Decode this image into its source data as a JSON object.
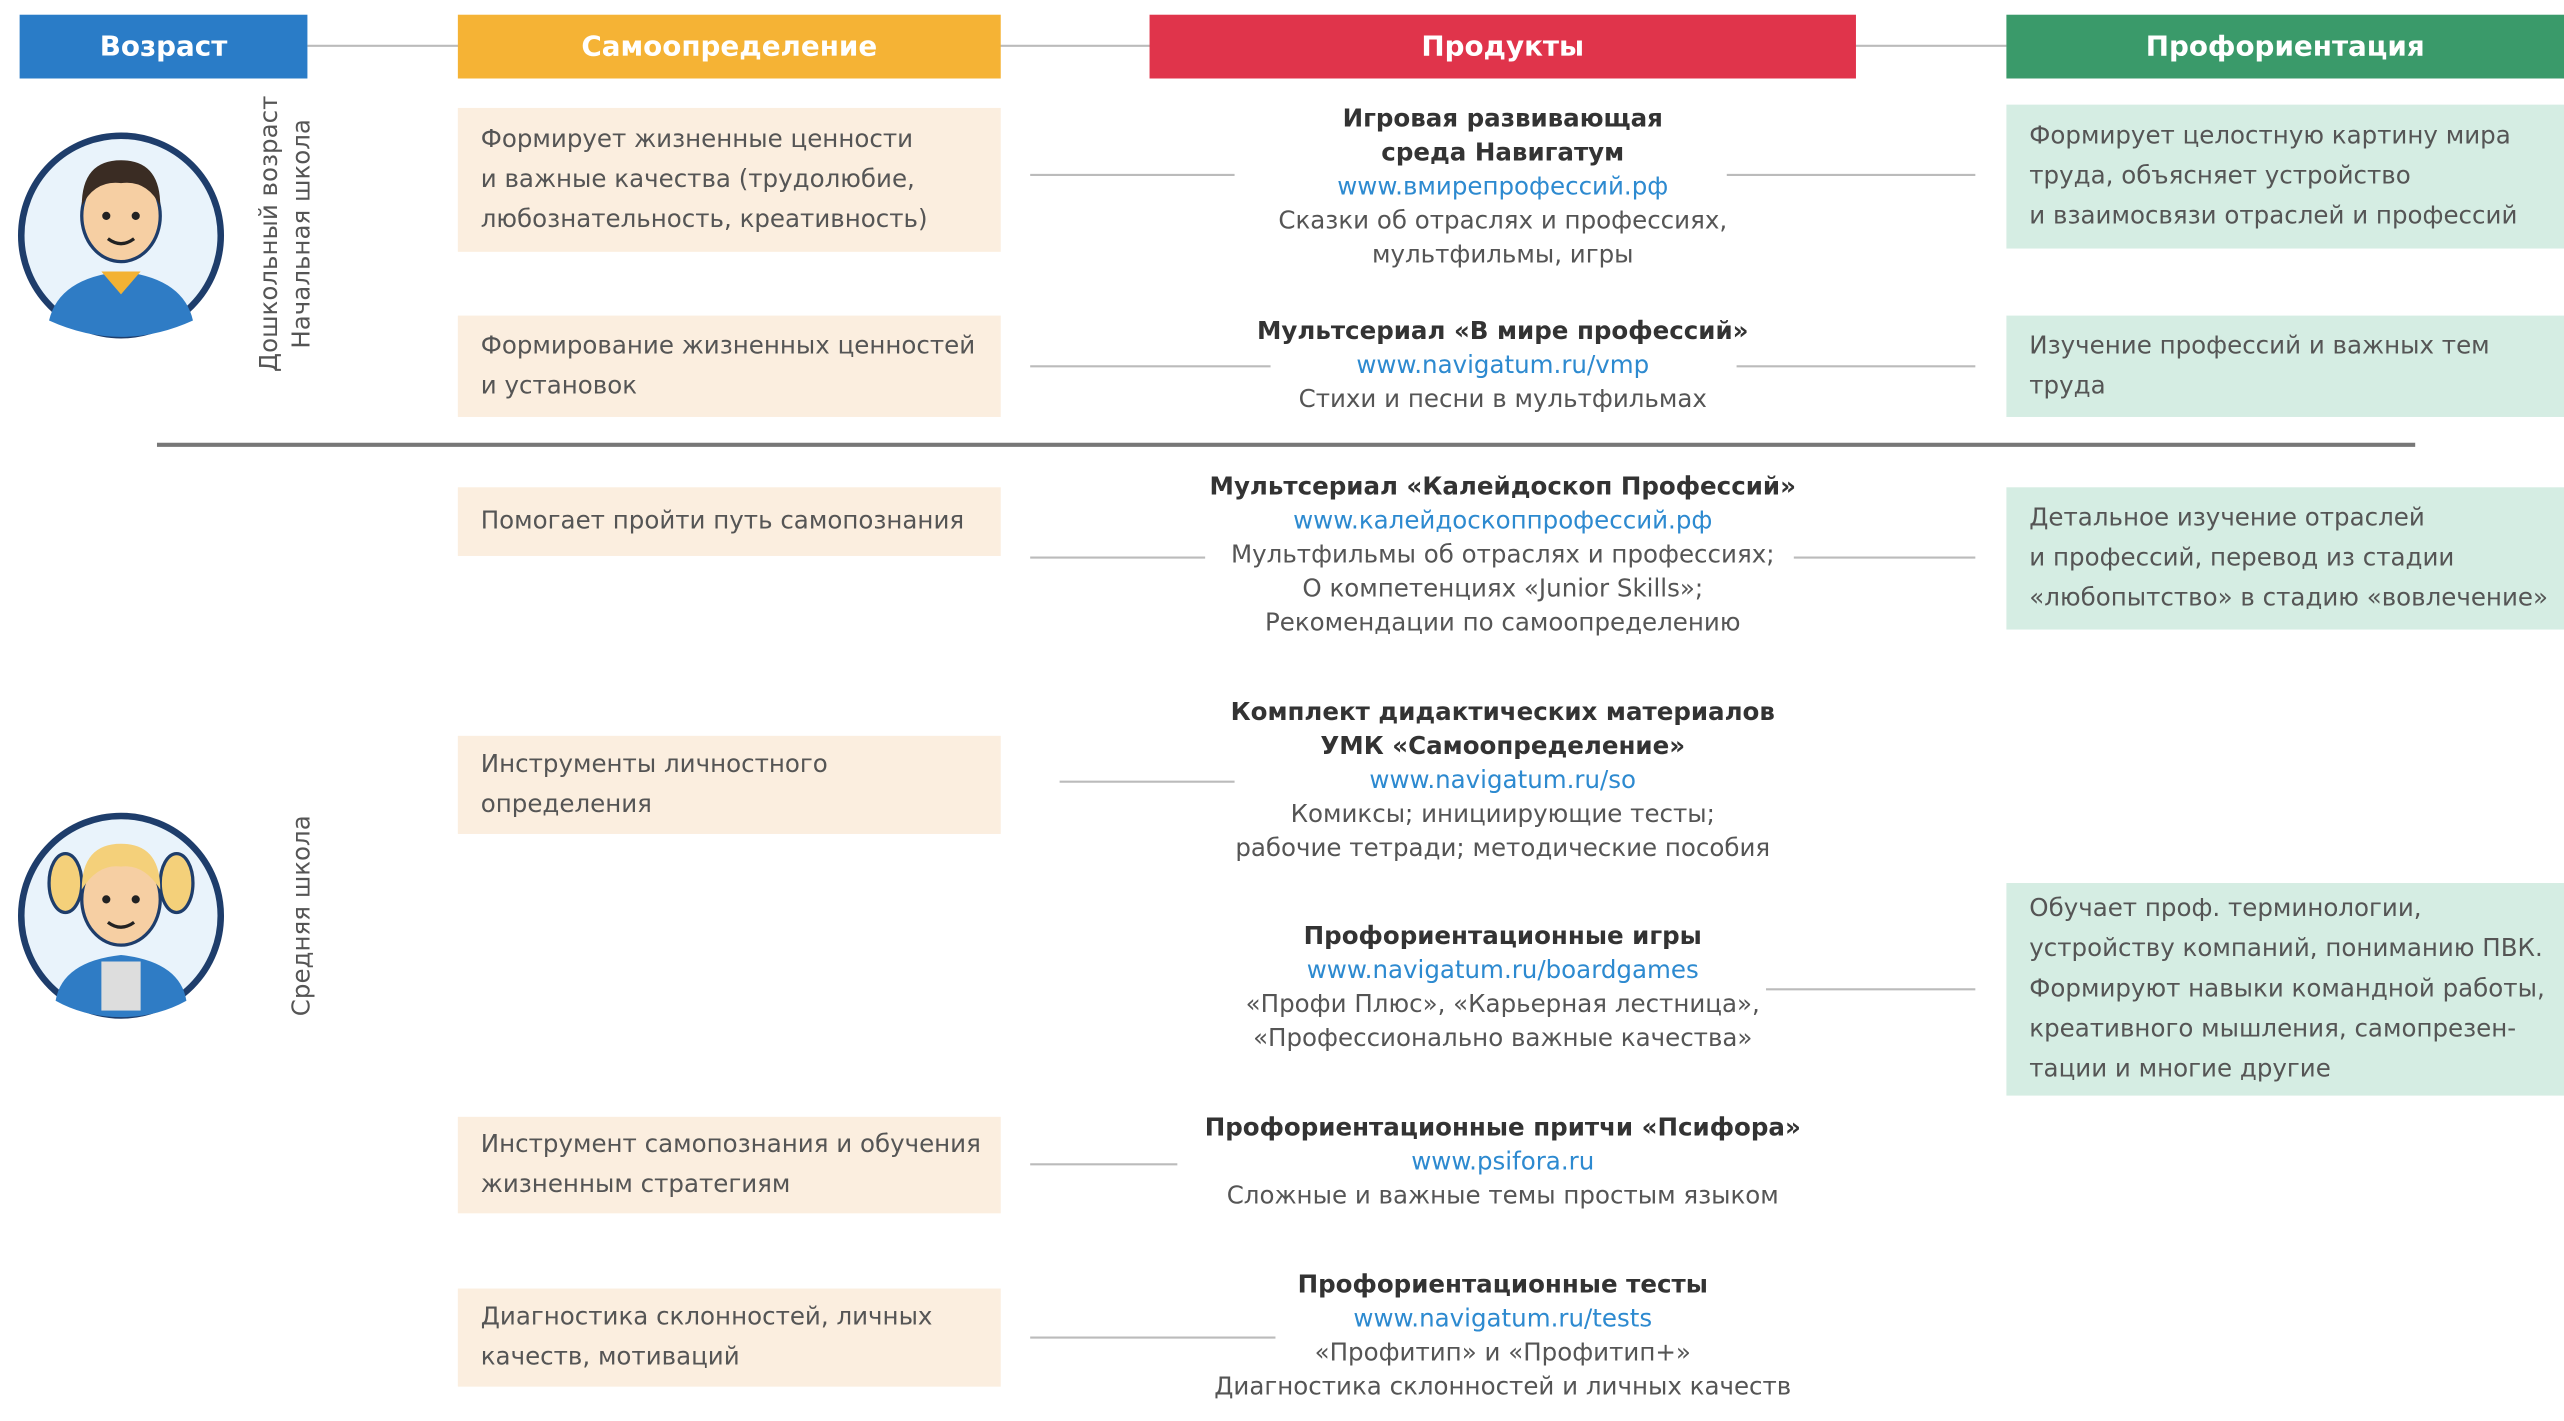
{
  "header": {
    "columns": [
      "Возраст",
      "Самоопределение",
      "Продукты",
      "Профориентация"
    ]
  },
  "age_groups": [
    {
      "lines": [
        "Дошкольный возраст",
        "Начальная школа"
      ]
    },
    {
      "lines": [
        "Средняя школа"
      ]
    }
  ],
  "self_determination": [
    {
      "lines": [
        "Формирует жизненные ценности",
        "и важные качества (трудолюбие,",
        "любознательность, креативность)"
      ]
    },
    {
      "lines": [
        "Формирование жизненных ценностей",
        "и установок"
      ]
    },
    {
      "lines": [
        "Помогает пройти путь самопознания"
      ]
    },
    {
      "lines": [
        "Инструменты личностного",
        "определения"
      ]
    },
    {
      "lines": [
        "Инструмент самопознания и обучения",
        "жизненным стратегиям"
      ]
    },
    {
      "lines": [
        "Диагностика склонностей, личных",
        "качеств, мотиваций"
      ]
    }
  ],
  "products": [
    {
      "title": [
        "Игровая развивающая",
        "среда Навигатум"
      ],
      "url": "www.вмирепрофессий.рф",
      "desc": [
        "Сказки об отраслях и профессиях,",
        "мультфильмы, игры"
      ]
    },
    {
      "title": [
        "Мультсериал «В мире профессий»"
      ],
      "url": "www.navigatum.ru/vmp",
      "desc": [
        "Стихи и песни в мультфильмах"
      ]
    },
    {
      "title": [
        "Мультсериал «Калейдоскоп Профессий»"
      ],
      "url": "www.калейдоскоппрофессий.рф",
      "desc": [
        "Мультфильмы об отраслях и профессиях;",
        "О компетенциях «Junior Skills»;",
        "Рекомендации по самоопределению"
      ]
    },
    {
      "title": [
        "Комплект дидактических материалов",
        "УМК «Самоопределение»"
      ],
      "url": "www.navigatum.ru/so",
      "desc": [
        "Комиксы; инициирующие тесты;",
        "рабочие тетради; методические пособия"
      ]
    },
    {
      "title": [
        "Профориентационные игры"
      ],
      "url": "www.navigatum.ru/boardgames",
      "desc": [
        "«Профи Плюс», «Карьерная лестница»,",
        "«Профессионально важные качества»"
      ]
    },
    {
      "title": [
        "Профориентационные притчи «Псифора»"
      ],
      "url": "www.psifora.ru",
      "desc": [
        "Сложные и важные темы простым языком"
      ]
    },
    {
      "title": [
        "Профориентационные тесты"
      ],
      "url": "www.navigatum.ru/tests",
      "desc": [
        "«Профитип» и «Профитип+»",
        "Диагностика склонностей и личных качеств"
      ]
    }
  ],
  "career_guidance": [
    {
      "lines": [
        "Формирует целостную картину мира",
        "труда, объясняет устройство",
        "и взаимосвязи отраслей и профессий"
      ]
    },
    {
      "lines": [
        "Изучение профессий и важных тем",
        "труда"
      ]
    },
    {
      "lines": [
        "Детальное изучение отраслей",
        "и профессий, перевод из стадии",
        "«любопытство» в стадию «вовлечение»"
      ]
    },
    {
      "lines": [
        "Обучает проф. терминологии,",
        "устройству компаний, пониманию ПВК.",
        "Формируют навыки командной работы,",
        "креативного мышления, самопрезен-",
        "тации и многие другие"
      ]
    }
  ]
}
